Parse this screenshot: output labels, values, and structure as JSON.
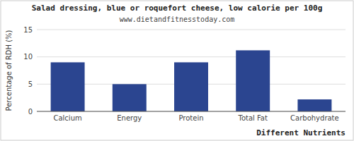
{
  "chart_data": {
    "type": "bar",
    "title": "Salad dressing, blue or roquefort cheese, low calorie per 100g",
    "subtitle": "www.dietandfitnesstoday.com",
    "xlabel": "Different Nutrients",
    "ylabel": "Percentage of RDH (%)",
    "categories": [
      "Calcium",
      "Energy",
      "Protein",
      "Total Fat",
      "Carbohydrate"
    ],
    "values": [
      9.0,
      5.0,
      9.0,
      11.2,
      2.2
    ],
    "color": "#2b4590",
    "ylim": [
      0,
      15
    ],
    "yticks": [
      0,
      5,
      10,
      15
    ],
    "grid": true
  }
}
